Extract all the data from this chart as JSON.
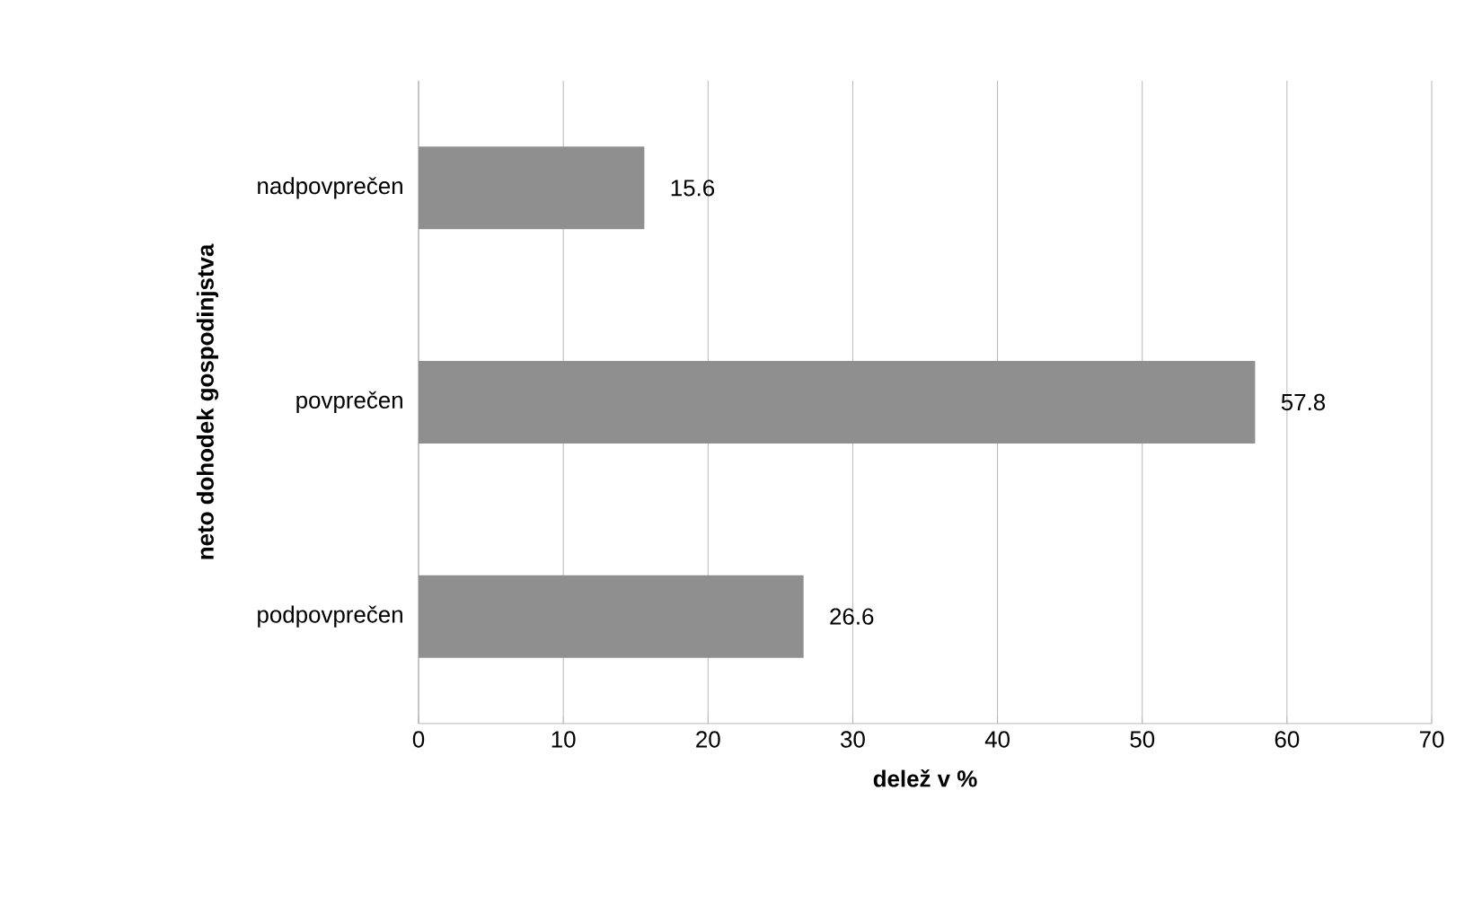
{
  "chart_data": {
    "type": "bar",
    "orientation": "horizontal",
    "xlabel": "delež v %",
    "ylabel": "neto dohodek gospodinjstva",
    "categories": [
      "nadpovprečen",
      "povprečen",
      "podpovprečen"
    ],
    "values": [
      15.6,
      57.8,
      26.6
    ],
    "color": "#8f8f8f",
    "xlim": [
      0,
      70
    ],
    "xticks": [
      0,
      10,
      20,
      30,
      40,
      50,
      60,
      70
    ],
    "grid": "x",
    "data_labels": true
  }
}
